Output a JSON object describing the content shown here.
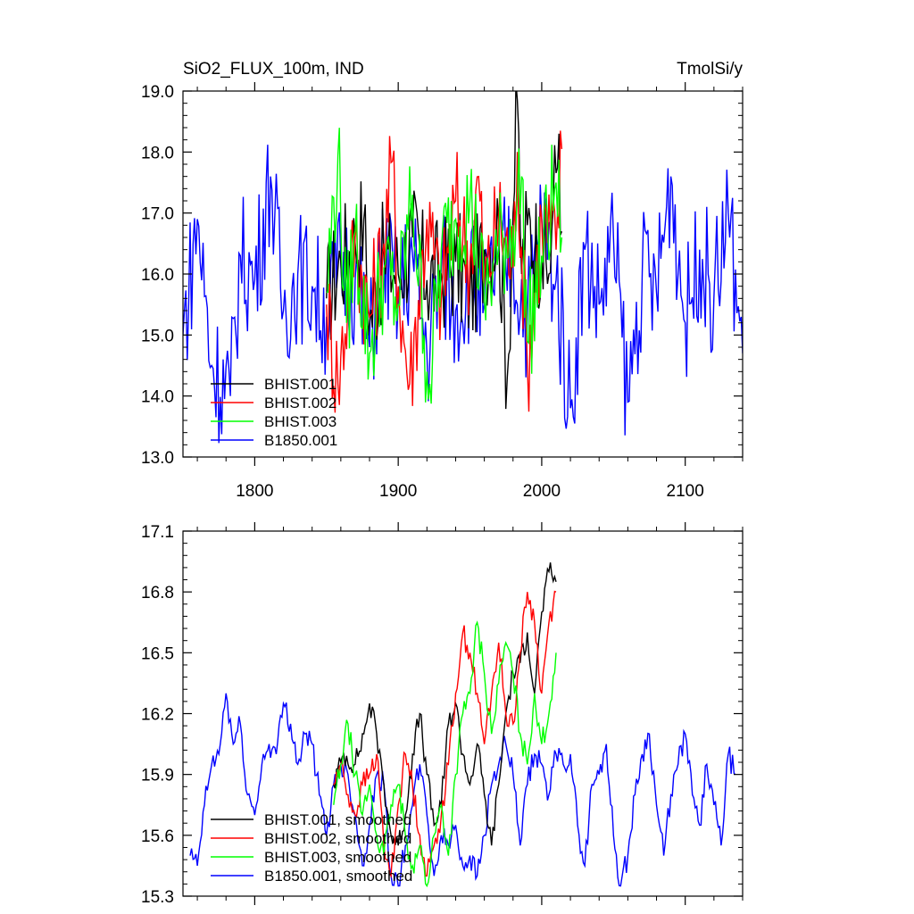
{
  "chart_data": [
    {
      "type": "line",
      "title": "SiO2_FLUX_100m, IND",
      "units": "TmolSi/y",
      "xlim": [
        1750,
        2140
      ],
      "ylim": [
        13.0,
        19.0
      ],
      "xticks": [
        1800,
        1900,
        2000,
        2100
      ],
      "xtick_labels": [
        "1800",
        "1900",
        "2000",
        "2100"
      ],
      "yticks": [
        13.0,
        14.0,
        15.0,
        16.0,
        17.0,
        18.0,
        19.0
      ],
      "ytick_labels": [
        "13.0",
        "14.0",
        "15.0",
        "16.0",
        "17.0",
        "18.0",
        "19.0"
      ],
      "legend_position": "lower-left",
      "series": [
        {
          "name": "BHIST.001",
          "color": "#000000",
          "start": 1850,
          "end": 2014,
          "x": [
            1850,
            1860,
            1870,
            1876,
            1880,
            1890,
            1900,
            1910,
            1920,
            1930,
            1940,
            1950,
            1960,
            1970,
            1976,
            1980,
            1983,
            1986,
            1990,
            2000,
            2005,
            2008,
            2012,
            2014
          ],
          "values": [
            15.6,
            16.2,
            16.5,
            16.9,
            15.2,
            16.3,
            16.0,
            16.6,
            15.9,
            16.0,
            16.2,
            15.7,
            16.4,
            16.8,
            14.3,
            17.0,
            18.85,
            16.0,
            16.8,
            16.3,
            16.0,
            17.1,
            18.3,
            16.7
          ]
        },
        {
          "name": "BHIST.002",
          "color": "#ff0000",
          "start": 1850,
          "end": 2014,
          "x": [
            1850,
            1858,
            1870,
            1880,
            1890,
            1896,
            1900,
            1908,
            1920,
            1930,
            1940,
            1950,
            1956,
            1960,
            1970,
            1980,
            1983,
            1990,
            2000,
            2010,
            2014
          ],
          "values": [
            15.5,
            14.2,
            16.6,
            15.3,
            16.5,
            17.85,
            15.8,
            14.2,
            16.9,
            15.6,
            17.2,
            16.2,
            17.6,
            15.8,
            16.9,
            16.1,
            18.0,
            14.5,
            16.9,
            16.4,
            18.05
          ],
          "note_color": "red"
        },
        {
          "name": "BHIST.003",
          "color": "#00ff00",
          "start": 1850,
          "end": 2014,
          "x": [
            1850,
            1858,
            1864,
            1870,
            1880,
            1890,
            1900,
            1910,
            1918,
            1922,
            1930,
            1940,
            1950,
            1960,
            1970,
            1980,
            1986,
            1990,
            2000,
            2010,
            2014
          ],
          "values": [
            15.7,
            17.95,
            15.2,
            16.7,
            14.7,
            16.1,
            15.5,
            17.3,
            15.0,
            14.2,
            16.4,
            16.9,
            17.2,
            15.6,
            16.4,
            16.8,
            17.6,
            14.9,
            16.3,
            17.5,
            16.6
          ]
        },
        {
          "name": "B1850.001",
          "color": "#0000ff",
          "start": 1750,
          "end": 2140,
          "x": [
            1750,
            1760,
            1770,
            1783,
            1790,
            1800,
            1811,
            1820,
            1830,
            1840,
            1850,
            1860,
            1870,
            1880,
            1890,
            1900,
            1910,
            1920,
            1930,
            1940,
            1950,
            1960,
            1970,
            1980,
            1990,
            2000,
            2010,
            2020,
            2030,
            2040,
            2050,
            2060,
            2070,
            2080,
            2090,
            2100,
            2110,
            2120,
            2130,
            2140
          ],
          "values": [
            15.0,
            16.9,
            14.5,
            14.0,
            16.3,
            15.9,
            17.6,
            15.4,
            16.0,
            15.8,
            15.3,
            16.2,
            15.9,
            14.8,
            16.4,
            15.6,
            16.3,
            14.7,
            16.1,
            15.4,
            16.0,
            15.5,
            16.3,
            16.2,
            15.3,
            16.9,
            15.9,
            13.8,
            16.4,
            15.5,
            16.6,
            13.9,
            16.0,
            15.7,
            17.6,
            15.2,
            16.4,
            15.6,
            17.0,
            14.7
          ]
        }
      ]
    },
    {
      "type": "line",
      "title": "",
      "xlim": [
        1750,
        2140
      ],
      "ylim": [
        15.3,
        17.1
      ],
      "xticks": [
        1800,
        1900,
        2000,
        2100
      ],
      "yticks": [
        15.3,
        15.6,
        15.9,
        16.2,
        16.5,
        16.8,
        17.1
      ],
      "ytick_labels": [
        "15.3",
        "15.6",
        "15.9",
        "16.2",
        "16.5",
        "16.8",
        "17.1"
      ],
      "legend_position": "lower-left",
      "series": [
        {
          "name": "BHIST.001, smoothed",
          "color": "#000000",
          "x": [
            1855,
            1862,
            1870,
            1876,
            1880,
            1885,
            1890,
            1895,
            1900,
            1905,
            1910,
            1915,
            1920,
            1925,
            1930,
            1935,
            1940,
            1945,
            1950,
            1955,
            1960,
            1965,
            1970,
            1975,
            1980,
            1985,
            1990,
            1995,
            2000,
            2005,
            2010
          ],
          "values": [
            15.85,
            16.0,
            15.95,
            16.1,
            16.25,
            16.1,
            15.85,
            15.6,
            15.55,
            15.7,
            16.0,
            16.2,
            15.9,
            15.65,
            15.75,
            16.15,
            16.25,
            16.0,
            15.85,
            16.05,
            15.8,
            15.55,
            15.85,
            16.2,
            16.4,
            16.45,
            16.6,
            16.3,
            16.7,
            16.9,
            16.85
          ]
        },
        {
          "name": "BHIST.002, smoothed",
          "color": "#ff0000",
          "x": [
            1855,
            1860,
            1865,
            1870,
            1875,
            1880,
            1885,
            1890,
            1895,
            1900,
            1905,
            1910,
            1915,
            1920,
            1925,
            1930,
            1935,
            1940,
            1945,
            1950,
            1955,
            1960,
            1965,
            1970,
            1975,
            1980,
            1985,
            1990,
            1995,
            2000,
            2005,
            2010
          ],
          "values": [
            15.85,
            15.95,
            15.8,
            15.7,
            15.85,
            15.9,
            16.0,
            15.55,
            15.4,
            15.75,
            16.0,
            15.85,
            15.6,
            15.4,
            15.55,
            15.7,
            15.95,
            16.3,
            16.6,
            16.5,
            16.3,
            16.05,
            16.3,
            16.55,
            16.2,
            16.15,
            16.5,
            16.8,
            16.65,
            16.3,
            16.65,
            16.8
          ]
        },
        {
          "name": "BHIST.003, smoothed",
          "color": "#00ff00",
          "x": [
            1855,
            1860,
            1865,
            1870,
            1875,
            1880,
            1885,
            1890,
            1895,
            1900,
            1905,
            1910,
            1915,
            1920,
            1925,
            1930,
            1935,
            1940,
            1945,
            1950,
            1955,
            1960,
            1965,
            1970,
            1975,
            1980,
            1985,
            1990,
            1995,
            2000,
            2005,
            2010
          ],
          "values": [
            15.75,
            15.95,
            16.15,
            15.9,
            15.7,
            15.85,
            15.6,
            15.5,
            15.75,
            15.85,
            15.6,
            15.45,
            15.55,
            15.35,
            15.6,
            15.75,
            15.5,
            15.9,
            16.2,
            16.3,
            16.65,
            16.4,
            16.1,
            16.35,
            16.55,
            16.4,
            16.1,
            15.95,
            16.3,
            16.05,
            16.2,
            16.5
          ]
        },
        {
          "name": "B1850.001, smoothed",
          "color": "#0000ff",
          "x": [
            1755,
            1760,
            1765,
            1770,
            1775,
            1780,
            1785,
            1790,
            1795,
            1800,
            1805,
            1810,
            1815,
            1820,
            1825,
            1830,
            1835,
            1840,
            1845,
            1850,
            1855,
            1860,
            1865,
            1870,
            1875,
            1880,
            1885,
            1890,
            1895,
            1900,
            1905,
            1910,
            1915,
            1920,
            1925,
            1930,
            1935,
            1940,
            1945,
            1950,
            1955,
            1960,
            1965,
            1970,
            1975,
            1980,
            1985,
            1990,
            1995,
            2000,
            2005,
            2010,
            2015,
            2020,
            2025,
            2030,
            2035,
            2040,
            2045,
            2050,
            2055,
            2060,
            2065,
            2070,
            2075,
            2080,
            2085,
            2090,
            2095,
            2100,
            2105,
            2110,
            2115,
            2120,
            2125,
            2130,
            2135
          ],
          "values": [
            15.5,
            15.45,
            15.75,
            15.95,
            16.0,
            16.3,
            16.05,
            16.15,
            15.8,
            15.7,
            15.95,
            16.05,
            16.0,
            16.25,
            16.15,
            15.95,
            16.1,
            16.05,
            15.8,
            15.6,
            15.85,
            15.95,
            15.9,
            15.7,
            15.45,
            15.65,
            15.9,
            15.85,
            15.4,
            15.35,
            15.55,
            15.75,
            15.95,
            15.7,
            15.4,
            15.6,
            15.55,
            15.65,
            15.45,
            15.5,
            15.4,
            15.6,
            15.85,
            15.95,
            16.05,
            15.9,
            15.55,
            15.85,
            16.0,
            15.95,
            15.8,
            16.0,
            15.95,
            16.0,
            15.65,
            15.45,
            15.85,
            15.9,
            16.05,
            15.6,
            15.35,
            15.5,
            15.8,
            16.0,
            16.1,
            15.75,
            15.5,
            15.8,
            15.95,
            16.1,
            15.8,
            15.65,
            15.95,
            15.75,
            15.55,
            16.0,
            15.9
          ]
        }
      ]
    }
  ]
}
